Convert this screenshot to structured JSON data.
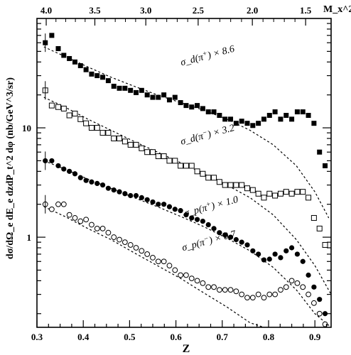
{
  "chart_data": {
    "type": "scatter",
    "xlabel": "Z",
    "ylabel": "dσ/dΩ_e dE_e dzdP_t^2 dφ  (nb/GeV^3/sr)",
    "top_axis_label": "M_x^2",
    "xlim": [
      0.3,
      0.935
    ],
    "ylim": [
      0.15,
      100
    ],
    "y_scale": "log",
    "x_ticks": [
      "0.3",
      "0.4",
      "0.5",
      "0.6",
      "0.7",
      "0.8",
      "0.9"
    ],
    "x_tick_values": [
      0.3,
      0.4,
      0.5,
      0.6,
      0.7,
      0.8,
      0.9
    ],
    "y_ticks": [
      "1",
      "10"
    ],
    "y_tick_values": [
      1,
      10
    ],
    "top_ticks": [
      "4.0",
      "3.5",
      "3.0",
      "2.5",
      "2.0",
      "1.5"
    ],
    "top_tick_z": [
      0.32,
      0.425,
      0.535,
      0.648,
      0.765,
      0.88
    ],
    "series": [
      {
        "name_base": "σ_d(π",
        "name_sup": "+",
        "name_suffix": ") × 8.6",
        "label_x": 0.612,
        "label_y": 37,
        "label_angle": -15,
        "marker": "filled_square",
        "x": [
          0.318,
          0.332,
          0.346,
          0.358,
          0.37,
          0.382,
          0.394,
          0.406,
          0.418,
          0.43,
          0.442,
          0.454,
          0.466,
          0.478,
          0.49,
          0.502,
          0.514,
          0.526,
          0.538,
          0.55,
          0.562,
          0.574,
          0.586,
          0.598,
          0.61,
          0.622,
          0.634,
          0.646,
          0.658,
          0.67,
          0.682,
          0.694,
          0.706,
          0.718,
          0.73,
          0.742,
          0.754,
          0.766,
          0.778,
          0.79,
          0.802,
          0.814,
          0.826,
          0.838,
          0.85,
          0.862,
          0.874,
          0.886,
          0.898,
          0.91,
          0.922
        ],
        "y": [
          60,
          70,
          53,
          46,
          43,
          40,
          37,
          34,
          31,
          30,
          29,
          27,
          24,
          23,
          23,
          22,
          21,
          22,
          20,
          19,
          19,
          20,
          18,
          19,
          17,
          16,
          15.5,
          16,
          15,
          14,
          14,
          13,
          12,
          12,
          11,
          11.5,
          11,
          10.5,
          11,
          12,
          13,
          14,
          12,
          13,
          12,
          14,
          14,
          13,
          11,
          6,
          4.5
        ],
        "fit_x": [
          0.315,
          0.36,
          0.41,
          0.46,
          0.51,
          0.56,
          0.61,
          0.66,
          0.71,
          0.76,
          0.81,
          0.86,
          0.9,
          0.93
        ],
        "fit_y": [
          55,
          45,
          36,
          29,
          24,
          20,
          17,
          14.5,
          12,
          9.5,
          7,
          4.5,
          2.6,
          1.5
        ]
      },
      {
        "name_base": "σ_d(π",
        "name_sup": "−",
        "name_suffix": ") × 3.2",
        "label_x": 0.612,
        "label_y": 7.0,
        "label_angle": -15,
        "marker": "open_square",
        "x": [
          0.318,
          0.332,
          0.346,
          0.358,
          0.37,
          0.382,
          0.394,
          0.406,
          0.418,
          0.43,
          0.442,
          0.454,
          0.466,
          0.478,
          0.49,
          0.502,
          0.514,
          0.526,
          0.538,
          0.55,
          0.562,
          0.574,
          0.586,
          0.598,
          0.61,
          0.622,
          0.634,
          0.646,
          0.658,
          0.67,
          0.682,
          0.694,
          0.706,
          0.718,
          0.73,
          0.742,
          0.754,
          0.766,
          0.778,
          0.79,
          0.802,
          0.814,
          0.826,
          0.838,
          0.85,
          0.862,
          0.874,
          0.886,
          0.898,
          0.91,
          0.922
        ],
        "y": [
          22,
          16,
          15.5,
          15,
          13,
          13.5,
          12,
          11,
          10,
          10,
          9,
          9,
          8,
          8,
          7.5,
          7,
          7,
          6.5,
          6,
          6,
          5.5,
          5.5,
          5,
          5,
          4.5,
          4.5,
          4.5,
          4,
          3.8,
          3.5,
          3.5,
          3.2,
          3,
          3,
          3,
          3,
          2.8,
          2.7,
          2.5,
          2.3,
          2.5,
          2.4,
          2.5,
          2.6,
          2.5,
          2.6,
          2.6,
          2.3,
          1.5,
          1.2,
          0.85
        ],
        "fit_x": [
          0.315,
          0.36,
          0.41,
          0.46,
          0.51,
          0.56,
          0.61,
          0.66,
          0.71,
          0.76,
          0.81,
          0.86,
          0.9,
          0.935
        ],
        "fit_y": [
          19,
          15.5,
          12,
          9.5,
          7.5,
          6,
          4.8,
          3.8,
          3,
          2.3,
          1.6,
          0.95,
          0.55,
          0.3
        ]
      },
      {
        "name_base": "σ_p(π",
        "name_sup": "+",
        "name_suffix": ") × 1.0",
        "label_x": 0.62,
        "label_y": 1.55,
        "label_angle": -15,
        "marker": "filled_circle",
        "x": [
          0.318,
          0.332,
          0.346,
          0.358,
          0.37,
          0.382,
          0.394,
          0.406,
          0.418,
          0.43,
          0.442,
          0.454,
          0.466,
          0.478,
          0.49,
          0.502,
          0.514,
          0.526,
          0.538,
          0.55,
          0.562,
          0.574,
          0.586,
          0.598,
          0.61,
          0.622,
          0.634,
          0.646,
          0.658,
          0.67,
          0.682,
          0.694,
          0.706,
          0.718,
          0.73,
          0.742,
          0.754,
          0.766,
          0.778,
          0.79,
          0.802,
          0.814,
          0.826,
          0.838,
          0.85,
          0.862,
          0.874,
          0.886,
          0.898,
          0.91,
          0.922
        ],
        "y": [
          5,
          5,
          4.5,
          4.2,
          4,
          3.8,
          3.5,
          3.3,
          3.2,
          3.1,
          3,
          2.8,
          2.7,
          2.6,
          2.5,
          2.4,
          2.4,
          2.3,
          2.2,
          2.1,
          2,
          2,
          1.9,
          1.8,
          1.75,
          1.6,
          1.5,
          1.45,
          1.4,
          1.3,
          1.2,
          1.1,
          1.05,
          1,
          0.95,
          0.9,
          0.85,
          0.75,
          0.7,
          0.62,
          0.63,
          0.7,
          0.65,
          0.75,
          0.8,
          0.7,
          0.6,
          0.45,
          0.35,
          0.27,
          0.2
        ],
        "fit_x": [
          0.315,
          0.36,
          0.41,
          0.46,
          0.51,
          0.56,
          0.61,
          0.66,
          0.71,
          0.76,
          0.81,
          0.86,
          0.9,
          0.935
        ],
        "fit_y": [
          5,
          4.2,
          3.4,
          2.8,
          2.3,
          1.9,
          1.55,
          1.25,
          0.98,
          0.75,
          0.53,
          0.33,
          0.2,
          0.12
        ]
      },
      {
        "name_base": "σ_p(π",
        "name_sup": "−",
        "name_suffix": ") × 0.7",
        "label_x": 0.615,
        "label_y": 0.75,
        "label_angle": -15,
        "marker": "open_circle",
        "x": [
          0.318,
          0.332,
          0.346,
          0.358,
          0.37,
          0.382,
          0.394,
          0.406,
          0.418,
          0.43,
          0.442,
          0.454,
          0.466,
          0.478,
          0.49,
          0.502,
          0.514,
          0.526,
          0.538,
          0.55,
          0.562,
          0.574,
          0.586,
          0.598,
          0.61,
          0.622,
          0.634,
          0.646,
          0.658,
          0.67,
          0.682,
          0.694,
          0.706,
          0.718,
          0.73,
          0.742,
          0.754,
          0.766,
          0.778,
          0.79,
          0.802,
          0.814,
          0.826,
          0.838,
          0.85,
          0.862,
          0.874,
          0.886,
          0.898,
          0.91,
          0.922
        ],
        "y": [
          2,
          1.8,
          2,
          2,
          1.6,
          1.5,
          1.4,
          1.45,
          1.3,
          1.2,
          1.2,
          1.1,
          1,
          0.95,
          0.9,
          0.85,
          0.8,
          0.75,
          0.7,
          0.65,
          0.6,
          0.6,
          0.55,
          0.5,
          0.45,
          0.45,
          0.42,
          0.4,
          0.38,
          0.35,
          0.35,
          0.33,
          0.33,
          0.33,
          0.32,
          0.3,
          0.28,
          0.28,
          0.3,
          0.28,
          0.3,
          0.3,
          0.33,
          0.35,
          0.4,
          0.38,
          0.35,
          0.3,
          0.25,
          0.2,
          0.16
        ],
        "fit_x": [
          0.315,
          0.36,
          0.41,
          0.46,
          0.51,
          0.56,
          0.61,
          0.66,
          0.71,
          0.76,
          0.79
        ],
        "fit_y": [
          1.9,
          1.55,
          1.2,
          0.95,
          0.72,
          0.55,
          0.42,
          0.31,
          0.23,
          0.165,
          0.14
        ]
      }
    ]
  }
}
